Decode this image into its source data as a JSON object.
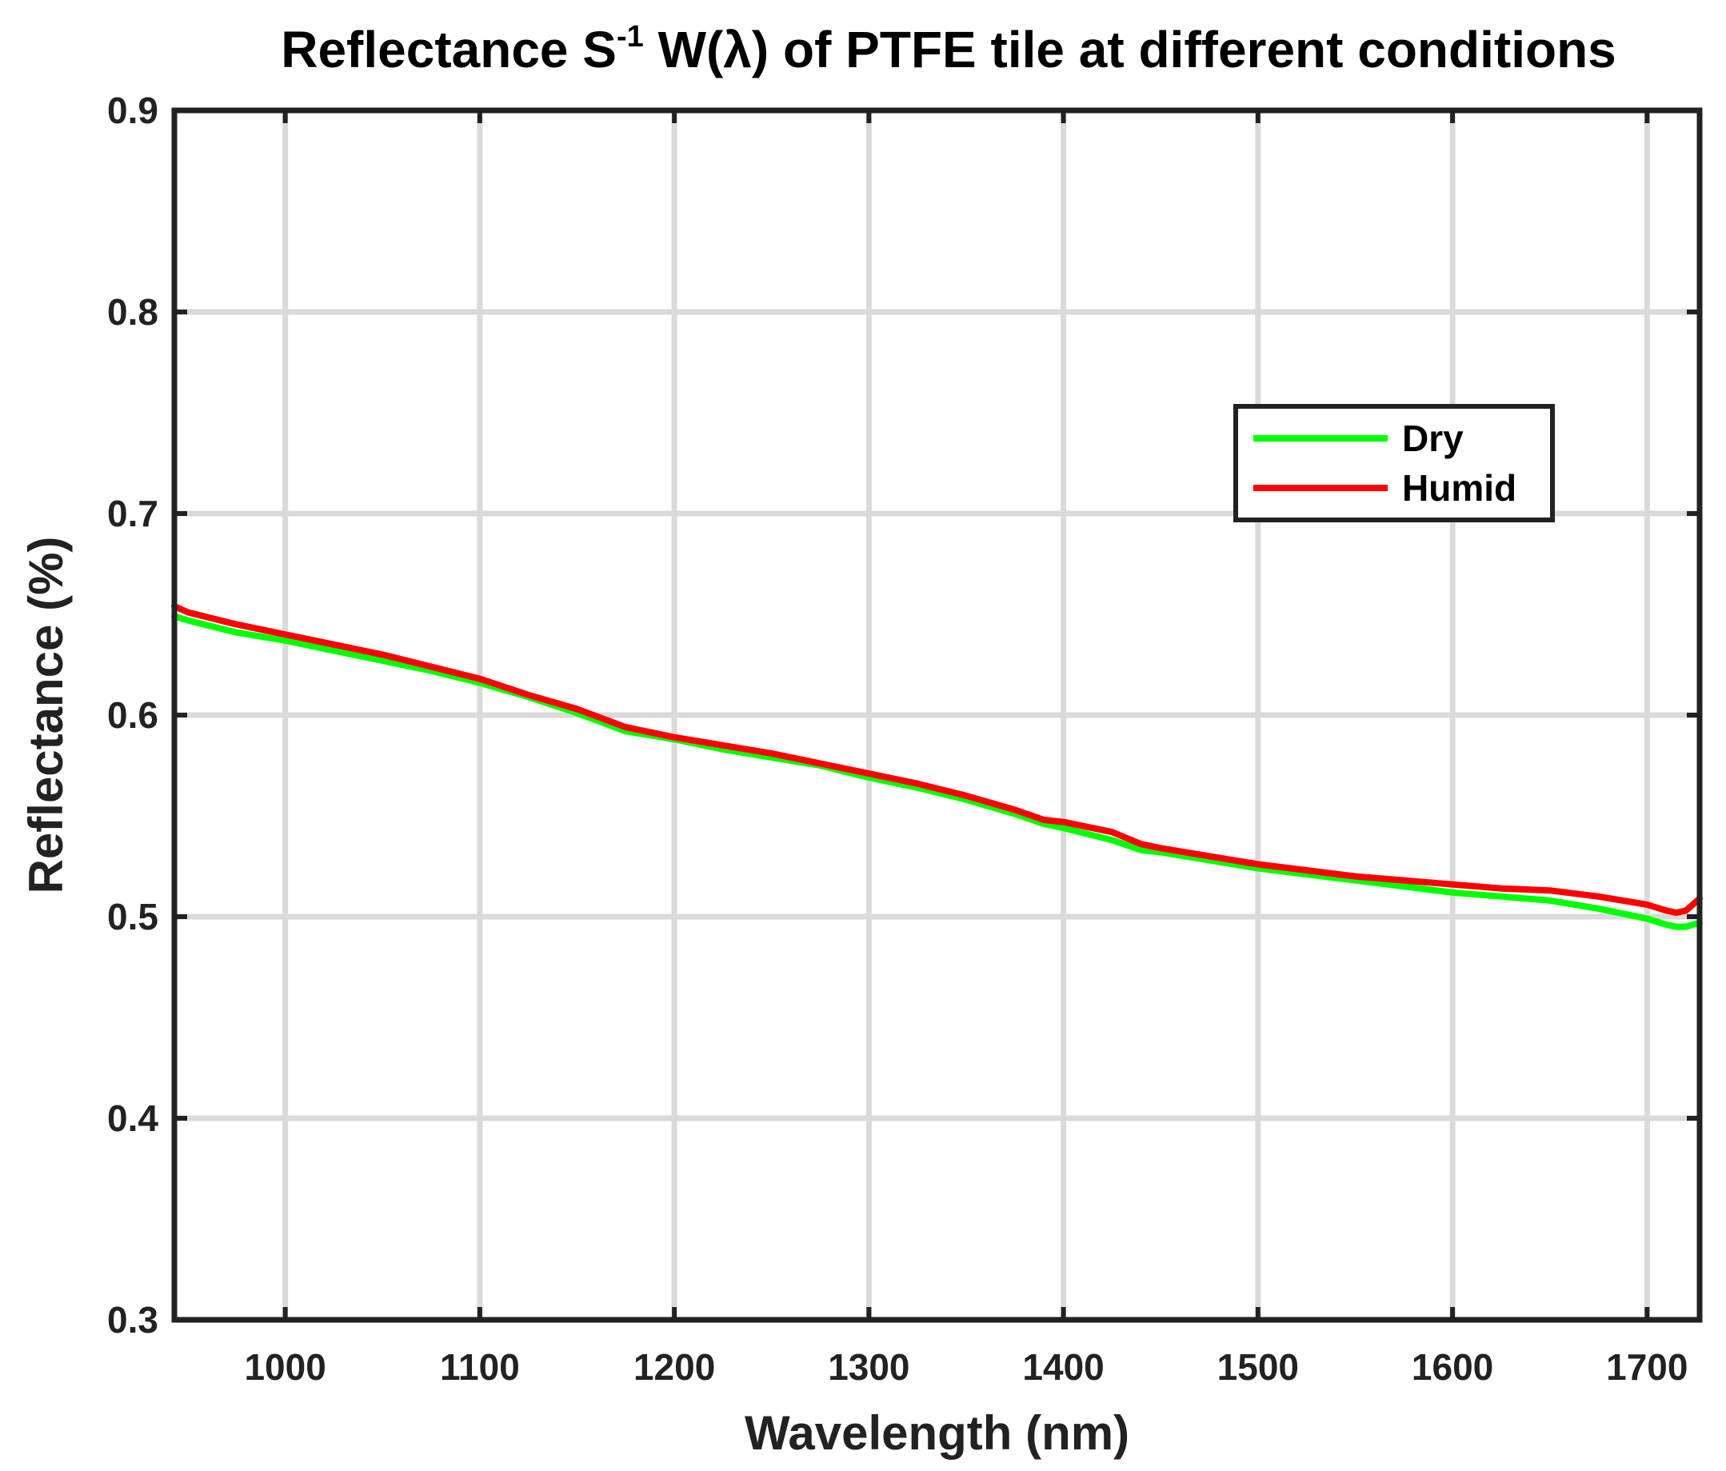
{
  "chart_data": {
    "type": "line",
    "title_parts": {
      "before": "Reflectance S",
      "superscript": "-1",
      "after": " W(λ) of PTFE tile at different conditions"
    },
    "xlabel": "Wavelength (nm)",
    "ylabel": "Reflectance (%)",
    "xlim": [
      943,
      1727
    ],
    "ylim": [
      0.3,
      0.9
    ],
    "xticks": [
      1000,
      1100,
      1200,
      1300,
      1400,
      1500,
      1600,
      1700
    ],
    "xtick_labels": [
      "1000",
      "1100",
      "1200",
      "1300",
      "1400",
      "1500",
      "1600",
      "1700"
    ],
    "yticks": [
      0.3,
      0.4,
      0.5,
      0.6,
      0.7,
      0.8,
      0.9
    ],
    "ytick_labels": [
      "0.3",
      "0.4",
      "0.5",
      "0.6",
      "0.7",
      "0.8",
      "0.9"
    ],
    "grid": true,
    "legend_position": "upper-right",
    "series": [
      {
        "name": "Dry",
        "color": "#00ff00",
        "x": [
          943,
          950,
          975,
          1000,
          1025,
          1050,
          1075,
          1100,
          1125,
          1150,
          1175,
          1200,
          1225,
          1250,
          1275,
          1300,
          1325,
          1350,
          1375,
          1390,
          1400,
          1425,
          1440,
          1450,
          1475,
          1500,
          1525,
          1550,
          1575,
          1600,
          1625,
          1650,
          1675,
          1700,
          1710,
          1715,
          1720,
          1727
        ],
        "y": [
          0.649,
          0.647,
          0.641,
          0.637,
          0.632,
          0.627,
          0.622,
          0.616,
          0.609,
          0.601,
          0.592,
          0.588,
          0.583,
          0.579,
          0.575,
          0.569,
          0.564,
          0.558,
          0.551,
          0.546,
          0.544,
          0.538,
          0.533,
          0.532,
          0.528,
          0.524,
          0.521,
          0.518,
          0.515,
          0.512,
          0.51,
          0.508,
          0.504,
          0.499,
          0.496,
          0.495,
          0.495,
          0.497
        ]
      },
      {
        "name": "Humid",
        "color": "#ff0000",
        "x": [
          943,
          950,
          975,
          1000,
          1025,
          1050,
          1075,
          1100,
          1125,
          1150,
          1175,
          1200,
          1225,
          1250,
          1275,
          1300,
          1325,
          1350,
          1375,
          1390,
          1400,
          1425,
          1440,
          1450,
          1475,
          1500,
          1525,
          1550,
          1575,
          1600,
          1625,
          1650,
          1675,
          1700,
          1710,
          1715,
          1720,
          1727
        ],
        "y": [
          0.654,
          0.651,
          0.645,
          0.64,
          0.635,
          0.63,
          0.624,
          0.618,
          0.61,
          0.603,
          0.594,
          0.589,
          0.585,
          0.581,
          0.576,
          0.571,
          0.566,
          0.56,
          0.553,
          0.548,
          0.547,
          0.542,
          0.536,
          0.534,
          0.53,
          0.526,
          0.523,
          0.52,
          0.518,
          0.516,
          0.514,
          0.513,
          0.51,
          0.506,
          0.503,
          0.502,
          0.503,
          0.509
        ]
      }
    ]
  }
}
